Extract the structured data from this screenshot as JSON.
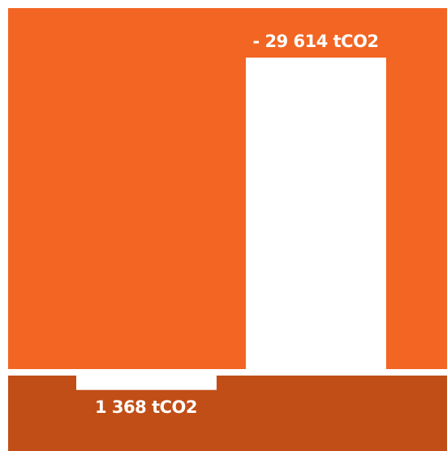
{
  "colors": {
    "upper_panel": "#f26522",
    "lower_panel": "#c04e16",
    "background": "#ffffff"
  },
  "chart_data": {
    "type": "bar",
    "title": "",
    "xlabel": "",
    "ylabel": "",
    "grid": false,
    "legend": "none",
    "series": [
      {
        "values": [
          1368,
          -29614
        ],
        "labels": [
          "1 368 tCO2",
          "- 29 614 tCO2"
        ]
      }
    ]
  }
}
